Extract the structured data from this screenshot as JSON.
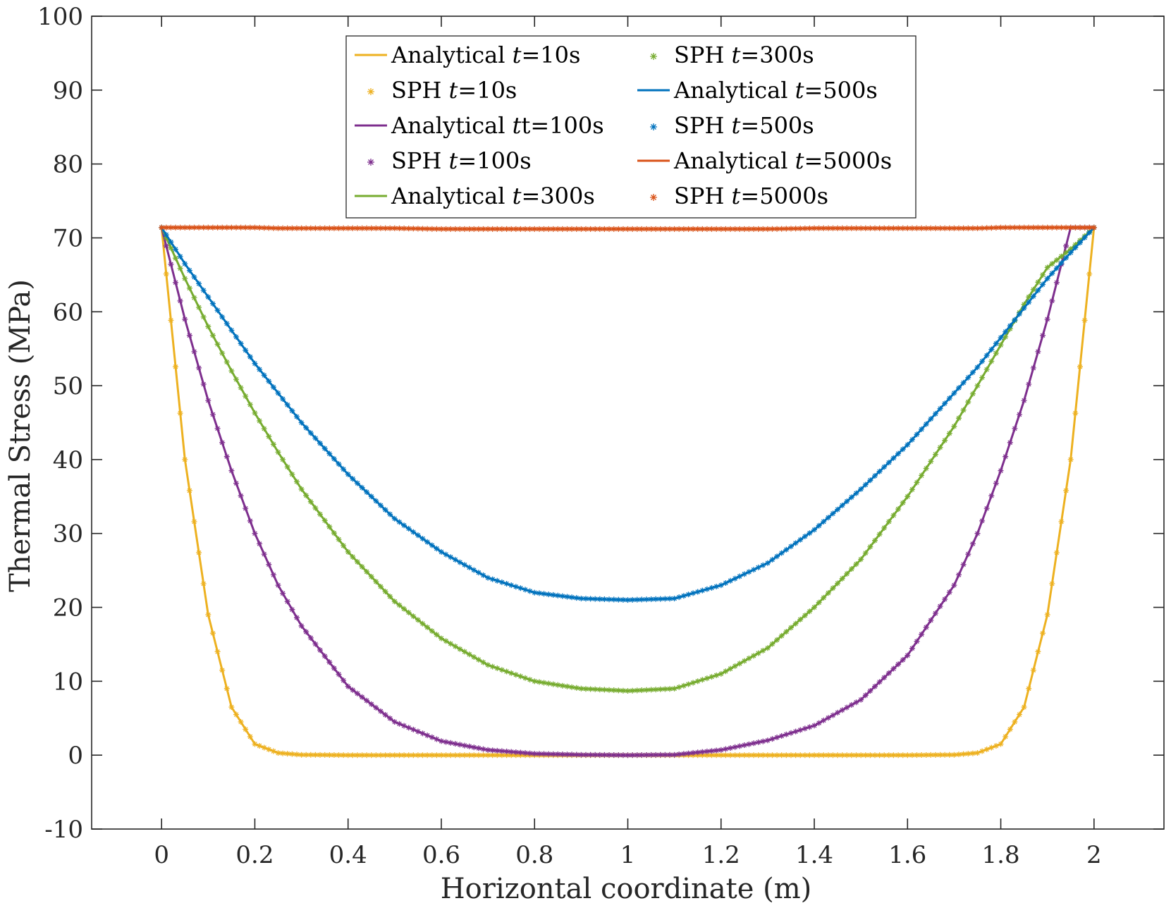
{
  "chart_data": {
    "type": "line",
    "title": "",
    "xlabel": "Horizontal coordinate (m)",
    "ylabel": "Thermal Stress (MPa)",
    "xlim": [
      -0.15,
      2.15
    ],
    "ylim": [
      -10,
      100
    ],
    "xticks": [
      0,
      0.2,
      0.4,
      0.6,
      0.8,
      1,
      1.2,
      1.4,
      1.6,
      1.8,
      2
    ],
    "xtick_labels": [
      "0",
      "0.2",
      "0.4",
      "0.6",
      "0.8",
      "1",
      "1.2",
      "1.4",
      "1.6",
      "1.8",
      "2"
    ],
    "yticks": [
      -10,
      0,
      10,
      20,
      30,
      40,
      50,
      60,
      70,
      80,
      90,
      100
    ],
    "ytick_labels": [
      "-10",
      "0",
      "10",
      "20",
      "30",
      "40",
      "50",
      "60",
      "70",
      "80",
      "90",
      "100"
    ],
    "grid": false,
    "legend_position": "top-center",
    "x": [
      0,
      0.05,
      0.1,
      0.15,
      0.2,
      0.25,
      0.3,
      0.4,
      0.5,
      0.6,
      0.7,
      0.8,
      0.9,
      1,
      1.1,
      1.2,
      1.3,
      1.4,
      1.5,
      1.6,
      1.7,
      1.75,
      1.8,
      1.85,
      1.9,
      1.95,
      2
    ],
    "series": [
      {
        "name": "Analytical t=10s",
        "kind": "line",
        "color": "#EDB120",
        "values": [
          71.4,
          40,
          19,
          6.5,
          1.5,
          0.3,
          0.05,
          0,
          0,
          0,
          0,
          0,
          0,
          0,
          0,
          0,
          0,
          0,
          0,
          0,
          0.05,
          0.3,
          1.5,
          6.5,
          19,
          40,
          71.4
        ]
      },
      {
        "name": "SPH t=10s",
        "kind": "marker",
        "color": "#EDB120",
        "values": [
          71.4,
          40,
          19,
          6.5,
          1.5,
          0.3,
          0.05,
          0,
          0,
          0,
          0,
          0,
          0,
          0,
          0,
          0,
          0,
          0,
          0,
          0,
          0.05,
          0.3,
          1.5,
          6.5,
          19,
          40,
          71.4
        ]
      },
      {
        "name": "Analytical tt=100s",
        "kind": "line",
        "color": "#7E2F8E",
        "values": [
          71.4,
          59,
          48,
          38.5,
          30,
          23,
          17.5,
          9.3,
          4.5,
          1.9,
          0.7,
          0.2,
          0.05,
          0,
          0.05,
          0.7,
          2,
          4,
          7.5,
          13.5,
          23,
          30,
          38.5,
          48,
          59,
          71.4,
          71.4
        ]
      },
      {
        "name": "SPH t=100s",
        "kind": "marker",
        "color": "#7E2F8E",
        "values": [
          71.4,
          59,
          48,
          38.5,
          30,
          23,
          17.5,
          9.3,
          4.5,
          1.9,
          0.7,
          0.2,
          0.05,
          0,
          0.05,
          0.7,
          2,
          4,
          7.5,
          13.5,
          23,
          30,
          38.5,
          48,
          59,
          71.4,
          71.4
        ]
      },
      {
        "name": "Analytical t=300s",
        "kind": "line",
        "color": "#77AC30",
        "values": [
          71.4,
          64.5,
          58,
          52,
          46.3,
          41,
          36,
          27.5,
          20.8,
          15.8,
          12.2,
          10,
          9,
          8.7,
          9,
          11,
          14.5,
          20,
          26.5,
          35,
          44.5,
          50,
          55.5,
          61,
          66,
          68.5,
          71.4
        ]
      },
      {
        "name": "SPH t=300s",
        "kind": "marker",
        "color": "#77AC30",
        "values": [
          71.4,
          64.5,
          58,
          52,
          46.3,
          41,
          36,
          27.5,
          20.8,
          15.8,
          12.2,
          10,
          9,
          8.7,
          9,
          11,
          14.5,
          20,
          26.5,
          35,
          44.5,
          50,
          55.5,
          61,
          66,
          68.5,
          71.4
        ]
      },
      {
        "name": "Analytical t=500s",
        "kind": "line",
        "color": "#0072BD",
        "values": [
          71.4,
          66.5,
          62,
          57.5,
          53,
          49,
          45,
          38,
          32,
          27.5,
          24,
          22,
          21.2,
          21,
          21.2,
          23,
          26,
          30.5,
          36,
          42,
          49,
          52.5,
          56.5,
          60.5,
          64.5,
          68,
          71.4
        ]
      },
      {
        "name": "SPH t=500s",
        "kind": "marker",
        "color": "#0072BD",
        "values": [
          71.4,
          66.5,
          62,
          57.5,
          53,
          49,
          45,
          38,
          32,
          27.5,
          24,
          22,
          21.2,
          21,
          21.2,
          23,
          26,
          30.5,
          36,
          42,
          49,
          52.5,
          56.5,
          60.5,
          64.5,
          68,
          71.4
        ]
      },
      {
        "name": "Analytical t=5000s",
        "kind": "line",
        "color": "#D95319",
        "values": [
          71.4,
          71.4,
          71.4,
          71.4,
          71.4,
          71.3,
          71.3,
          71.3,
          71.3,
          71.2,
          71.2,
          71.2,
          71.2,
          71.2,
          71.2,
          71.2,
          71.2,
          71.3,
          71.3,
          71.3,
          71.3,
          71.3,
          71.4,
          71.4,
          71.4,
          71.4,
          71.4
        ]
      },
      {
        "name": "SPH t=5000s",
        "kind": "marker",
        "color": "#D95319",
        "values": [
          71.4,
          71.4,
          71.4,
          71.4,
          71.4,
          71.3,
          71.3,
          71.3,
          71.3,
          71.2,
          71.2,
          71.2,
          71.2,
          71.2,
          71.2,
          71.2,
          71.2,
          71.3,
          71.3,
          71.3,
          71.3,
          71.3,
          71.4,
          71.4,
          71.4,
          71.4,
          71.4
        ]
      }
    ],
    "legend": [
      {
        "label": "Analytical t=10s",
        "prefix": "Analytical ",
        "var": "t",
        "suffix": "=10s",
        "kind": "line",
        "color": "#EDB120"
      },
      {
        "label": "SPH t=10s",
        "prefix": "SPH ",
        "var": "t",
        "suffix": "=10s",
        "kind": "marker",
        "color": "#EDB120"
      },
      {
        "label": "Analytical tt=100s",
        "prefix": "Analytical ",
        "var": "t",
        "suffix": "t=100s",
        "kind": "line",
        "color": "#7E2F8E"
      },
      {
        "label": "SPH t=100s",
        "prefix": "SPH ",
        "var": "t",
        "suffix": "=100s",
        "kind": "marker",
        "color": "#7E2F8E"
      },
      {
        "label": "Analytical t=300s",
        "prefix": "Analytical ",
        "var": "t",
        "suffix": "=300s",
        "kind": "line",
        "color": "#77AC30"
      },
      {
        "label": "SPH t=300s",
        "prefix": "SPH ",
        "var": "t",
        "suffix": "=300s",
        "kind": "marker",
        "color": "#77AC30"
      },
      {
        "label": "Analytical t=500s",
        "prefix": "Analytical ",
        "var": "t",
        "suffix": "=500s",
        "kind": "line",
        "color": "#0072BD"
      },
      {
        "label": "SPH t=500s",
        "prefix": "SPH ",
        "var": "t",
        "suffix": "=500s",
        "kind": "marker",
        "color": "#0072BD"
      },
      {
        "label": "Analytical t=5000s",
        "prefix": "Analytical ",
        "var": "t",
        "suffix": "=5000s",
        "kind": "line",
        "color": "#D95319"
      },
      {
        "label": "SPH t=5000s",
        "prefix": "SPH ",
        "var": "t",
        "suffix": "=5000s",
        "kind": "marker",
        "color": "#D95319"
      }
    ]
  }
}
